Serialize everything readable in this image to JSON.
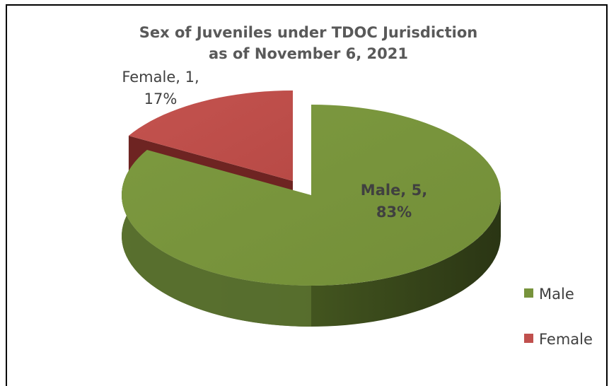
{
  "chart_data": {
    "type": "pie",
    "title": "Sex of Juveniles under TDOC Jurisdiction",
    "subtitle": "as of November 6, 2021",
    "categories": [
      "Male",
      "Female"
    ],
    "values": [
      5,
      1
    ],
    "percents": [
      "83%",
      "17%"
    ],
    "data_labels": [
      {
        "line1": "Male, 5,",
        "line2": "83%"
      },
      {
        "line1": "Female, 1,",
        "line2": "17%"
      }
    ],
    "colors": [
      "#77933c",
      "#c0504d"
    ],
    "legend": {
      "position": "bottom-right",
      "entries": [
        {
          "label": "Male",
          "color": "#77933c"
        },
        {
          "label": "Female",
          "color": "#c0504d"
        }
      ]
    },
    "style": "3d-exploded"
  }
}
